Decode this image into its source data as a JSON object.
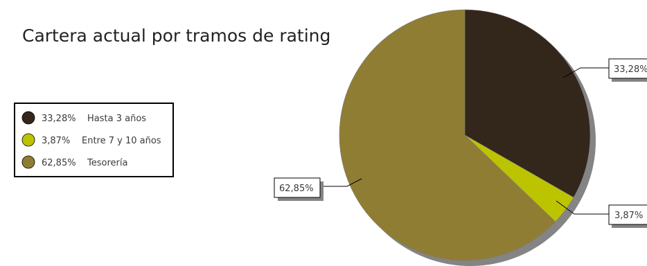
{
  "chart_data": {
    "type": "pie",
    "title": "Cartera actual por tramos de rating",
    "slices": [
      {
        "value_label": "33,28%",
        "value": 33.28,
        "label": "Hasta 3 años",
        "color": "#33261b"
      },
      {
        "value_label": "3,87%",
        "value": 3.87,
        "label": "Entre 7 y 10 años",
        "color": "#bcc400"
      },
      {
        "value_label": "62,85%",
        "value": 62.85,
        "label": "Tesorería",
        "color": "#8f7d33"
      }
    ],
    "legend_position": "left",
    "start_angle_deg": 0,
    "direction": "clockwise"
  },
  "colors": {
    "shadow": "#848484",
    "outline": "#000000",
    "background": "#ffffff"
  }
}
